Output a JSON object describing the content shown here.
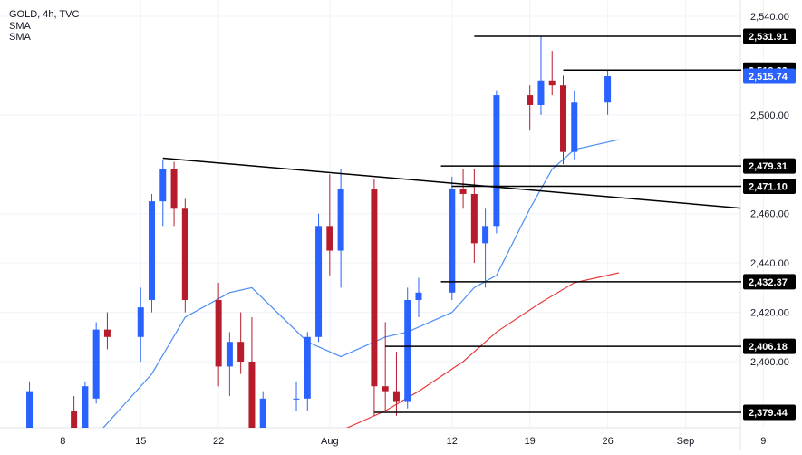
{
  "legend": {
    "symbol_line": "GOLD, 4h, TVC",
    "indicator_1": "SMA",
    "indicator_2": "SMA"
  },
  "colors": {
    "up": "#2962ff",
    "down": "#b71c2c",
    "sma_fast": "#4c8df6",
    "sma_slow": "#e83b3b",
    "levels": "#000000",
    "grid": "#f0f3fa",
    "axis_text": "#131722",
    "current_price_bg": "#2962ff"
  },
  "chart_data": {
    "type": "candlestick",
    "symbol": "GOLD",
    "timeframe": "4h",
    "source": "TVC",
    "x_ticks": [
      "8",
      "15",
      "22",
      "Aug",
      "12",
      "19",
      "26",
      "Sep",
      "9"
    ],
    "y_ticks": [
      2400,
      2420,
      2440,
      2460,
      2500,
      2540
    ],
    "y_tick_labels": [
      "2,400.00",
      "2,420.00",
      "2,440.00",
      "2,460.00",
      "2,500.00",
      "2,540.00"
    ],
    "ylim": [
      2372,
      2548
    ],
    "last_price": 2515.74,
    "last_price_label": "2,515.74",
    "horizontal_levels": [
      {
        "value": 2531.91,
        "label": "2,531.91"
      },
      {
        "value": 2518.22,
        "label": "2,518.22"
      },
      {
        "value": 2479.31,
        "label": "2,479.31"
      },
      {
        "value": 2471.1,
        "label": "2,471.10"
      },
      {
        "value": 2432.37,
        "label": "2,432.37"
      },
      {
        "value": 2406.18,
        "label": "2,406.18"
      },
      {
        "value": 2379.44,
        "label": "2,379.44"
      }
    ],
    "trendline": {
      "from": {
        "x": "2024-07-17",
        "y": 2482.5
      },
      "to": {
        "x": "2024-09-05",
        "y": 2463.0
      }
    },
    "candles": [
      {
        "date": "2024-07-03",
        "open": 2362,
        "high": 2368,
        "low": 2356,
        "close": 2360
      },
      {
        "date": "2024-07-05",
        "open": 2370,
        "high": 2392,
        "low": 2366,
        "close": 2388
      },
      {
        "date": "2024-07-09",
        "open": 2380,
        "high": 2386,
        "low": 2362,
        "close": 2365
      },
      {
        "date": "2024-07-10",
        "open": 2372,
        "high": 2392,
        "low": 2370,
        "close": 2390
      },
      {
        "date": "2024-07-11",
        "open": 2385,
        "high": 2416,
        "low": 2383,
        "close": 2413
      },
      {
        "date": "2024-07-12",
        "open": 2413,
        "high": 2420,
        "low": 2405,
        "close": 2410
      },
      {
        "date": "2024-07-15",
        "open": 2410,
        "high": 2430,
        "low": 2400,
        "close": 2422
      },
      {
        "date": "2024-07-16",
        "open": 2425,
        "high": 2468,
        "low": 2420,
        "close": 2465
      },
      {
        "date": "2024-07-17",
        "open": 2465,
        "high": 2482,
        "low": 2455,
        "close": 2478
      },
      {
        "date": "2024-07-18",
        "open": 2478,
        "high": 2481,
        "low": 2455,
        "close": 2462
      },
      {
        "date": "2024-07-19",
        "open": 2462,
        "high": 2466,
        "low": 2420,
        "close": 2425
      },
      {
        "date": "2024-07-22",
        "open": 2425,
        "high": 2432,
        "low": 2390,
        "close": 2398
      },
      {
        "date": "2024-07-23",
        "open": 2398,
        "high": 2412,
        "low": 2386,
        "close": 2408
      },
      {
        "date": "2024-07-24",
        "open": 2408,
        "high": 2420,
        "low": 2395,
        "close": 2400
      },
      {
        "date": "2024-07-25",
        "open": 2400,
        "high": 2418,
        "low": 2360,
        "close": 2368
      },
      {
        "date": "2024-07-26",
        "open": 2368,
        "high": 2388,
        "low": 2362,
        "close": 2385
      },
      {
        "date": "2024-07-29",
        "open": 2385,
        "high": 2392,
        "low": 2380,
        "close": 2385
      },
      {
        "date": "2024-07-30",
        "open": 2385,
        "high": 2412,
        "low": 2380,
        "close": 2410
      },
      {
        "date": "2024-07-31",
        "open": 2410,
        "high": 2460,
        "low": 2408,
        "close": 2455
      },
      {
        "date": "2024-08-01",
        "open": 2455,
        "high": 2476,
        "low": 2435,
        "close": 2445
      },
      {
        "date": "2024-08-02",
        "open": 2445,
        "high": 2478,
        "low": 2430,
        "close": 2470
      },
      {
        "date": "2024-08-05",
        "open": 2470,
        "high": 2474,
        "low": 2378,
        "close": 2390
      },
      {
        "date": "2024-08-06",
        "open": 2390,
        "high": 2416,
        "low": 2380,
        "close": 2388
      },
      {
        "date": "2024-08-07",
        "open": 2388,
        "high": 2404,
        "low": 2378,
        "close": 2384
      },
      {
        "date": "2024-08-08",
        "open": 2384,
        "high": 2430,
        "low": 2381,
        "close": 2425
      },
      {
        "date": "2024-08-09",
        "open": 2425,
        "high": 2434,
        "low": 2418,
        "close": 2428
      },
      {
        "date": "2024-08-12",
        "open": 2428,
        "high": 2475,
        "low": 2425,
        "close": 2470
      },
      {
        "date": "2024-08-13",
        "open": 2470,
        "high": 2478,
        "low": 2462,
        "close": 2468
      },
      {
        "date": "2024-08-14",
        "open": 2468,
        "high": 2478,
        "low": 2440,
        "close": 2448
      },
      {
        "date": "2024-08-15",
        "open": 2448,
        "high": 2462,
        "low": 2430,
        "close": 2455
      },
      {
        "date": "2024-08-16",
        "open": 2455,
        "high": 2510,
        "low": 2452,
        "close": 2508
      },
      {
        "date": "2024-08-19",
        "open": 2508,
        "high": 2512,
        "low": 2494,
        "close": 2504
      },
      {
        "date": "2024-08-20",
        "open": 2504,
        "high": 2532,
        "low": 2500,
        "close": 2514
      },
      {
        "date": "2024-08-21",
        "open": 2514,
        "high": 2526,
        "low": 2508,
        "close": 2512
      },
      {
        "date": "2024-08-22",
        "open": 2512,
        "high": 2516,
        "low": 2480,
        "close": 2485
      },
      {
        "date": "2024-08-23",
        "open": 2485,
        "high": 2510,
        "low": 2482,
        "close": 2505
      },
      {
        "date": "2024-08-26",
        "open": 2505,
        "high": 2518,
        "low": 2500,
        "close": 2515.74
      }
    ],
    "sma_fast": [
      {
        "date": "2024-07-11",
        "value": 2370
      },
      {
        "date": "2024-07-16",
        "value": 2395
      },
      {
        "date": "2024-07-19",
        "value": 2418
      },
      {
        "date": "2024-07-23",
        "value": 2428
      },
      {
        "date": "2024-07-25",
        "value": 2430
      },
      {
        "date": "2024-07-30",
        "value": 2408
      },
      {
        "date": "2024-08-02",
        "value": 2402
      },
      {
        "date": "2024-08-06",
        "value": 2410
      },
      {
        "date": "2024-08-08",
        "value": 2412
      },
      {
        "date": "2024-08-12",
        "value": 2420
      },
      {
        "date": "2024-08-14",
        "value": 2430
      },
      {
        "date": "2024-08-16",
        "value": 2435
      },
      {
        "date": "2024-08-19",
        "value": 2462
      },
      {
        "date": "2024-08-21",
        "value": 2478
      },
      {
        "date": "2024-08-23",
        "value": 2486
      },
      {
        "date": "2024-08-27",
        "value": 2490
      }
    ],
    "sma_slow": [
      {
        "date": "2024-08-02",
        "value": 2372
      },
      {
        "date": "2024-08-06",
        "value": 2380
      },
      {
        "date": "2024-08-09",
        "value": 2388
      },
      {
        "date": "2024-08-13",
        "value": 2400
      },
      {
        "date": "2024-08-16",
        "value": 2412
      },
      {
        "date": "2024-08-20",
        "value": 2424
      },
      {
        "date": "2024-08-23",
        "value": 2432
      },
      {
        "date": "2024-08-27",
        "value": 2436
      }
    ]
  }
}
